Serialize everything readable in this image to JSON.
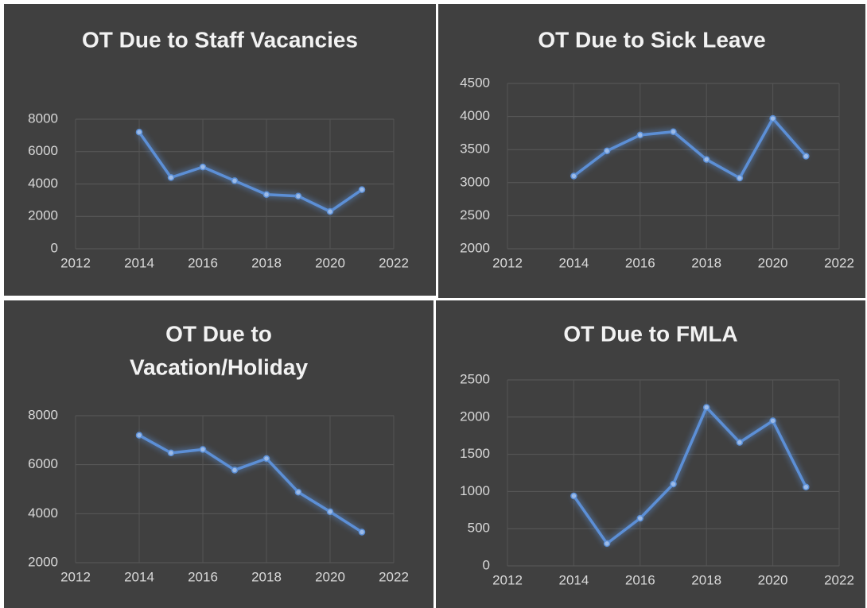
{
  "chart_data": [
    {
      "type": "line",
      "title": [
        "OT Due to Staff Vacancies"
      ],
      "x": [
        2014,
        2015,
        2016,
        2017,
        2018,
        2019,
        2020,
        2021
      ],
      "values": [
        7200,
        4400,
        5050,
        4200,
        3350,
        3250,
        2300,
        3650
      ],
      "color": "#5b8fd6",
      "xlim": [
        2012,
        2022
      ],
      "xticks": [
        2012,
        2014,
        2016,
        2018,
        2020,
        2022
      ],
      "ylim": [
        0,
        8000
      ],
      "yticks": [
        0,
        2000,
        4000,
        6000,
        8000
      ],
      "grid": true
    },
    {
      "type": "line",
      "title": [
        "OT Due to Sick Leave"
      ],
      "x": [
        2014,
        2015,
        2016,
        2017,
        2018,
        2019,
        2020,
        2021
      ],
      "values": [
        3100,
        3480,
        3720,
        3770,
        3350,
        3070,
        3970,
        3400
      ],
      "color": "#5b8fd6",
      "xlim": [
        2012,
        2022
      ],
      "xticks": [
        2012,
        2014,
        2016,
        2018,
        2020,
        2022
      ],
      "ylim": [
        2000,
        4500
      ],
      "yticks": [
        2000,
        2500,
        3000,
        3500,
        4000,
        4500
      ],
      "grid": true
    },
    {
      "type": "line",
      "title": [
        "OT Due to",
        "Vacation/Holiday"
      ],
      "x": [
        2014,
        2015,
        2016,
        2017,
        2018,
        2019,
        2020,
        2021
      ],
      "values": [
        7200,
        6480,
        6620,
        5780,
        6250,
        4880,
        4080,
        3250
      ],
      "color": "#5b8fd6",
      "xlim": [
        2012,
        2022
      ],
      "xticks": [
        2012,
        2014,
        2016,
        2018,
        2020,
        2022
      ],
      "ylim": [
        2000,
        8000
      ],
      "yticks": [
        2000,
        4000,
        6000,
        8000
      ],
      "grid": true
    },
    {
      "type": "line",
      "title": [
        "OT Due to FMLA"
      ],
      "x": [
        2014,
        2015,
        2016,
        2017,
        2018,
        2019,
        2020,
        2021
      ],
      "values": [
        940,
        300,
        640,
        1100,
        2130,
        1660,
        1950,
        1060
      ],
      "color": "#5b8fd6",
      "xlim": [
        2012,
        2022
      ],
      "xticks": [
        2012,
        2014,
        2016,
        2018,
        2020,
        2022
      ],
      "ylim": [
        0,
        2500
      ],
      "yticks": [
        0,
        500,
        1000,
        1500,
        2000,
        2500
      ],
      "grid": true
    }
  ]
}
